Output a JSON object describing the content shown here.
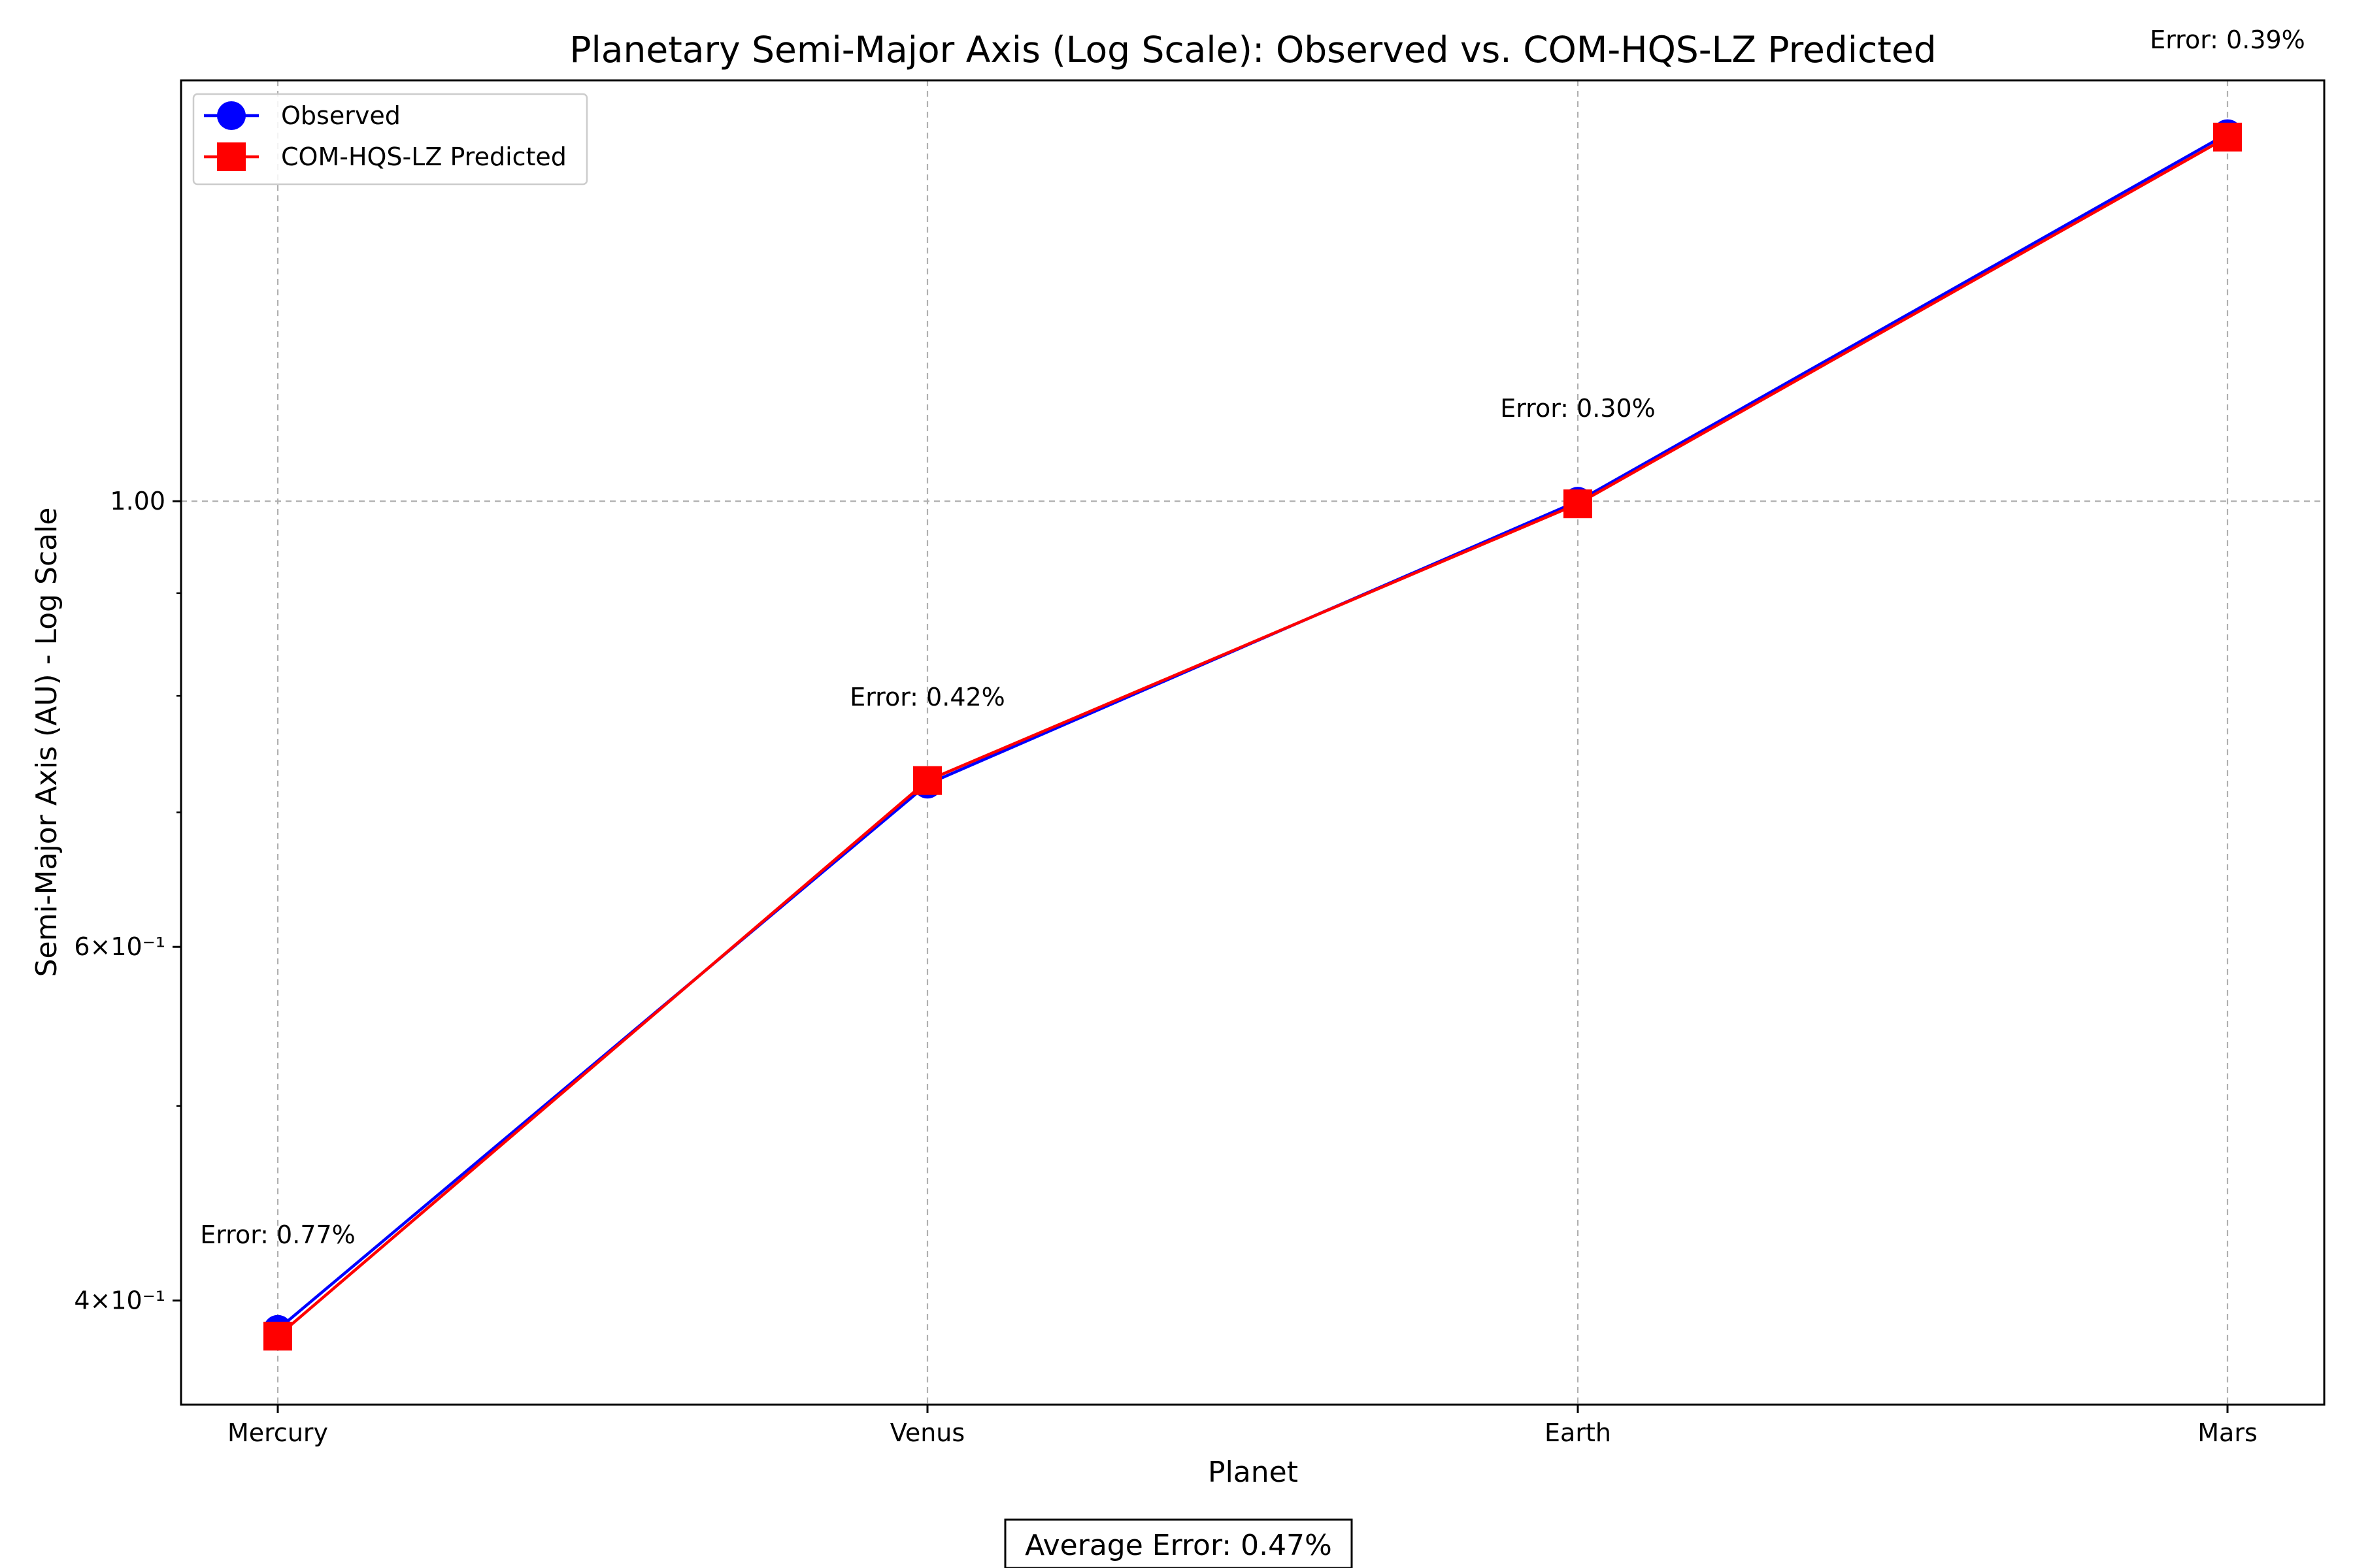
{
  "chart_data": {
    "type": "line",
    "title": "Planetary Semi-Major Axis (Log Scale): Observed vs. COM-HQS-LZ Predicted",
    "xlabel": "Planet",
    "ylabel": "Semi-Major Axis (AU) - Log Scale",
    "categories": [
      "Mercury",
      "Venus",
      "Earth",
      "Mars"
    ],
    "y_scale": "log",
    "ylim": [
      0.355,
      1.62
    ],
    "y_ticks": [
      {
        "value": 0.4,
        "label": "4×10⁻¹"
      },
      {
        "value": 0.6,
        "label": "6×10⁻¹"
      },
      {
        "value": 1.0,
        "label": "1.00"
      }
    ],
    "y_minor_ticks": [
      0.5,
      0.7,
      0.8,
      0.9
    ],
    "grid": true,
    "legend_position": "top-left",
    "series": [
      {
        "name": "Observed",
        "color": "#0000ff",
        "marker": "circle",
        "values": [
          0.387,
          0.723,
          1.0,
          1.524
        ]
      },
      {
        "name": "COM-HQS-LZ Predicted",
        "color": "#ff0000",
        "marker": "square",
        "values": [
          0.384,
          0.726,
          0.997,
          1.518
        ]
      }
    ],
    "annotations": [
      "Error: 0.77%",
      "Error: 0.42%",
      "Error: 0.30%",
      "Error: 0.39%"
    ],
    "footer": "Average Error: 0.47%"
  }
}
